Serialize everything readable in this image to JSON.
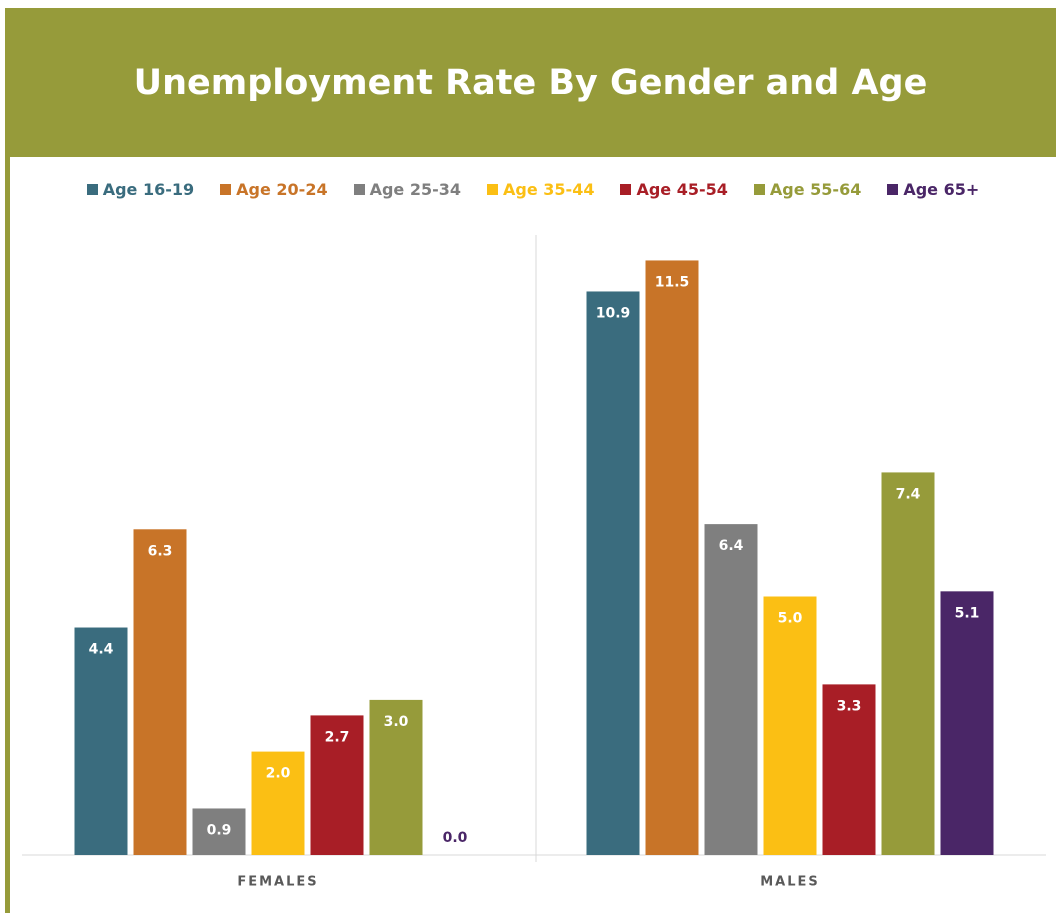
{
  "chart_data": {
    "type": "bar",
    "title": "Unemployment Rate By Gender and Age",
    "categories": [
      "FEMALES",
      "MALES"
    ],
    "series": [
      {
        "name": "Age 16-19",
        "color": "#3a6c7e",
        "values": [
          4.4,
          10.9
        ],
        "value_labels": [
          "4.4",
          "10.9"
        ]
      },
      {
        "name": "Age 20-24",
        "color": "#c87428",
        "values": [
          6.3,
          11.5
        ],
        "value_labels": [
          "6.3",
          "11.5"
        ]
      },
      {
        "name": "Age 25-34",
        "color": "#7f7f7f",
        "values": [
          0.9,
          6.4
        ],
        "value_labels": [
          "0.9",
          "6.4"
        ]
      },
      {
        "name": "Age 35-44",
        "color": "#fbbf14",
        "values": [
          2.0,
          5.0
        ],
        "value_labels": [
          "2.0",
          "5.0"
        ]
      },
      {
        "name": "Age 45-54",
        "color": "#a81e26",
        "values": [
          2.7,
          3.3
        ],
        "value_labels": [
          "2.7",
          "3.3"
        ]
      },
      {
        "name": "Age 55-64",
        "color": "#969b3a",
        "values": [
          3.0,
          7.4
        ],
        "value_labels": [
          "3.0",
          "7.4"
        ]
      },
      {
        "name": "Age 65+",
        "color": "#4a2667",
        "values": [
          0.0,
          5.1
        ],
        "value_labels": [
          "0.0",
          "5.1"
        ]
      }
    ],
    "legend": "top"
  }
}
